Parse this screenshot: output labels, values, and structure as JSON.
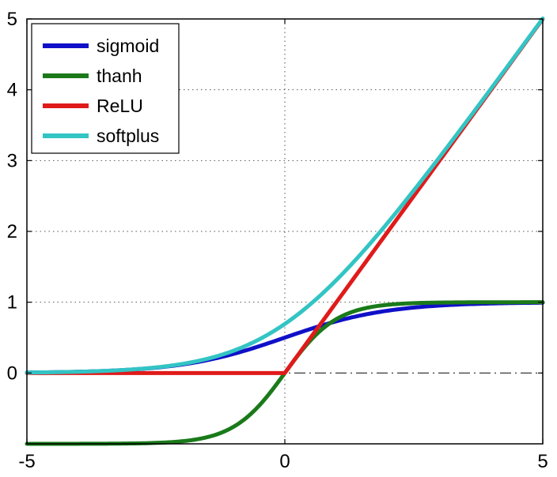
{
  "chart_data": {
    "type": "line",
    "title": "",
    "xlabel": "",
    "ylabel": "",
    "xlim": [
      -5,
      5
    ],
    "ylim": [
      -1,
      5
    ],
    "x_ticks": [
      -5,
      0,
      5
    ],
    "x_tick_labels": [
      "-5",
      "0",
      "5"
    ],
    "y_ticks": [
      0,
      1,
      2,
      3,
      4,
      5
    ],
    "y_tick_labels": [
      "0",
      "1",
      "2",
      "3",
      "4",
      "5"
    ],
    "grid": true,
    "grid_style": "dotted",
    "zero_line": "dash-dot",
    "legend_position": "top-left",
    "x": [
      -5,
      -4.5,
      -4,
      -3.5,
      -3,
      -2.5,
      -2,
      -1.5,
      -1,
      -0.5,
      0,
      0.5,
      1,
      1.5,
      2,
      2.5,
      3,
      3.5,
      4,
      4.5,
      5
    ],
    "series": [
      {
        "name": "sigmoid",
        "color": "#1010c8",
        "values": [
          0.007,
          0.011,
          0.018,
          0.029,
          0.047,
          0.076,
          0.119,
          0.182,
          0.269,
          0.378,
          0.5,
          0.622,
          0.731,
          0.818,
          0.881,
          0.924,
          0.953,
          0.971,
          0.982,
          0.989,
          0.993
        ]
      },
      {
        "name": "thanh",
        "color": "#1a7a1a",
        "values": [
          -1.0,
          -1.0,
          -0.999,
          -0.998,
          -0.995,
          -0.987,
          -0.964,
          -0.905,
          -0.762,
          -0.462,
          0.0,
          0.462,
          0.762,
          0.905,
          0.964,
          0.987,
          0.995,
          0.998,
          0.999,
          1.0,
          1.0
        ]
      },
      {
        "name": "ReLU",
        "color": "#e01a1a",
        "values": [
          0,
          0,
          0,
          0,
          0,
          0,
          0,
          0,
          0,
          0,
          0,
          0.5,
          1,
          1.5,
          2,
          2.5,
          3,
          3.5,
          4,
          4.5,
          5
        ]
      },
      {
        "name": "softplus",
        "color": "#33c4c4",
        "values": [
          0.007,
          0.011,
          0.018,
          0.03,
          0.049,
          0.079,
          0.127,
          0.201,
          0.313,
          0.474,
          0.693,
          0.974,
          1.313,
          1.701,
          2.127,
          2.579,
          3.049,
          3.53,
          4.018,
          4.511,
          5.007
        ]
      }
    ]
  }
}
